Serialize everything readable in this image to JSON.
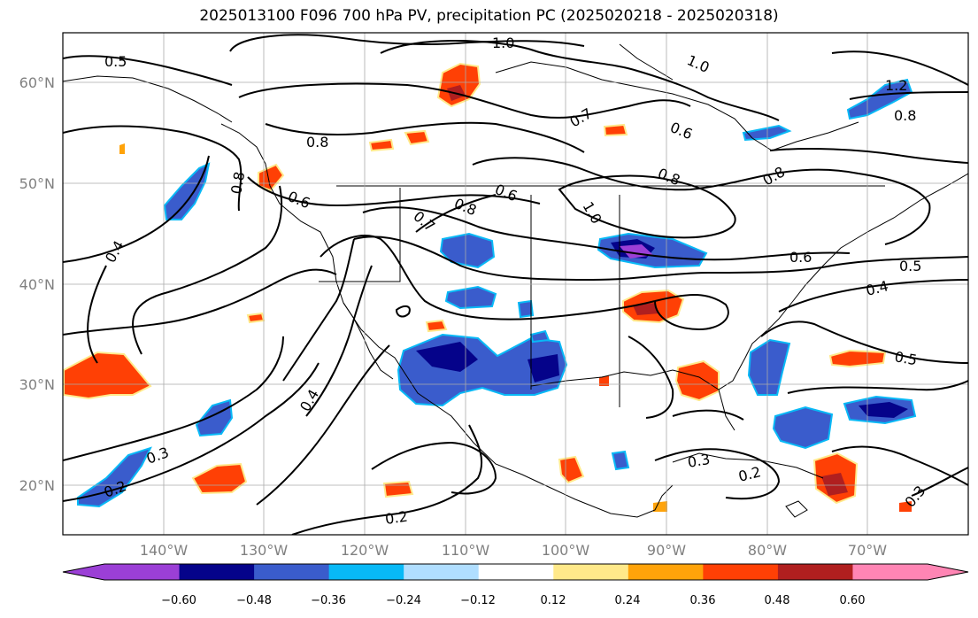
{
  "title": "2025013100 F096 700 hPa PV, precipitation PC (2025020218 - 2025020318)",
  "lat_labels": [
    "60°N",
    "50°N",
    "40°N",
    "30°N",
    "20°N"
  ],
  "lon_labels": [
    "140°W",
    "130°W",
    "120°W",
    "110°W",
    "100°W",
    "90°W",
    "80°W",
    "70°W"
  ],
  "contour_labels": [
    "0.5",
    "1.0",
    "1.0",
    "1.2",
    "0.8",
    "0.7",
    "0.6",
    "0.8",
    "0.8",
    "0.8",
    "0.8",
    "0.6",
    "0.6",
    "0.8",
    "1.0",
    "0.7",
    "0.6",
    "0.4",
    "0.5",
    "0.4",
    "0.5",
    "0.4",
    "0.3",
    "0.2",
    "0.3",
    "0.2",
    "0.3",
    "0.2"
  ],
  "colorbar": {
    "tick_labels": [
      "−0.60",
      "−0.48",
      "−0.36",
      "−0.24",
      "−0.12",
      "0.12",
      "0.24",
      "0.36",
      "0.48",
      "0.60"
    ],
    "colors": [
      "#9b3fd6",
      "#05038a",
      "#3a5ccc",
      "#08b9f6",
      "#b0deff",
      "#ffffff",
      "#ffe98a",
      "#ffa30a",
      "#ff4005",
      "#b01f1f",
      "#ff85b4"
    ]
  }
}
